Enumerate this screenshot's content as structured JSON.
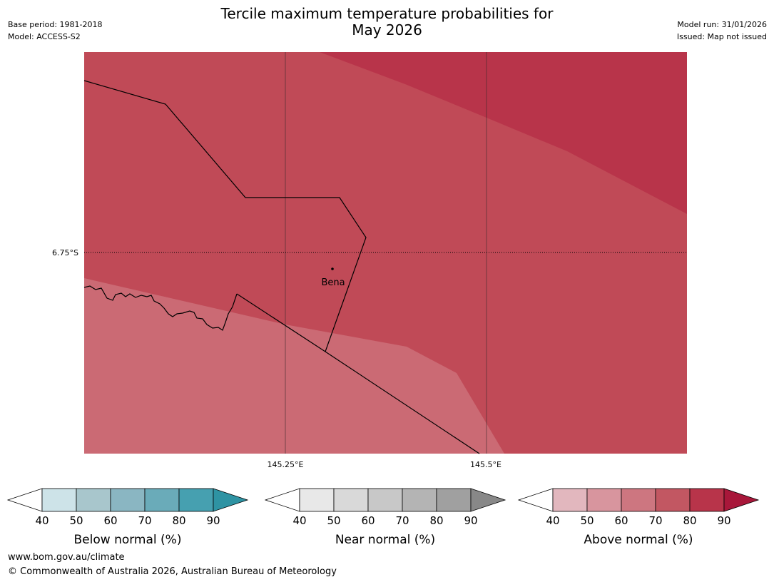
{
  "header": {
    "title_line1": "Tercile maximum temperature probabilities for",
    "title_line2": "May 2026",
    "base_period": "Base period: 1981-2018",
    "model": "Model: ACCESS-S2",
    "model_run": "Model run: 31/01/2026",
    "issued": "Issued: Map not issued"
  },
  "map": {
    "lat_label": "6.75°S",
    "lon_labels": [
      "145.25°E",
      "145.5°E"
    ],
    "place": "Bena",
    "fill_colors": {
      "above_50_60": "#cb6a74",
      "above_60_70": "#c04a57",
      "above_70_80": "#b8344a"
    }
  },
  "legends": [
    {
      "title": "Below normal (%)",
      "ticks": [
        "40",
        "50",
        "60",
        "70",
        "80",
        "90"
      ],
      "colors": [
        "#cde3e8",
        "#a8c6cc",
        "#8ab6c2",
        "#6aabb9",
        "#46a0b0"
      ],
      "arrow_color": "#2e93a3"
    },
    {
      "title": "Near normal (%)",
      "ticks": [
        "40",
        "50",
        "60",
        "70",
        "80",
        "90"
      ],
      "colors": [
        "#e8e8e8",
        "#d9d9d9",
        "#c8c8c8",
        "#b4b4b4",
        "#a0a0a0"
      ],
      "arrow_color": "#888888"
    },
    {
      "title": "Above normal (%)",
      "ticks": [
        "40",
        "50",
        "60",
        "70",
        "80",
        "90"
      ],
      "colors": [
        "#e2b7be",
        "#d8959e",
        "#cd7680",
        "#c25762",
        "#b8344a"
      ],
      "arrow_color": "#a8173a"
    }
  ],
  "footer": {
    "url": "www.bom.gov.au/climate",
    "copyright": "© Commonwealth of Australia 2026, Australian Bureau of Meteorology"
  }
}
